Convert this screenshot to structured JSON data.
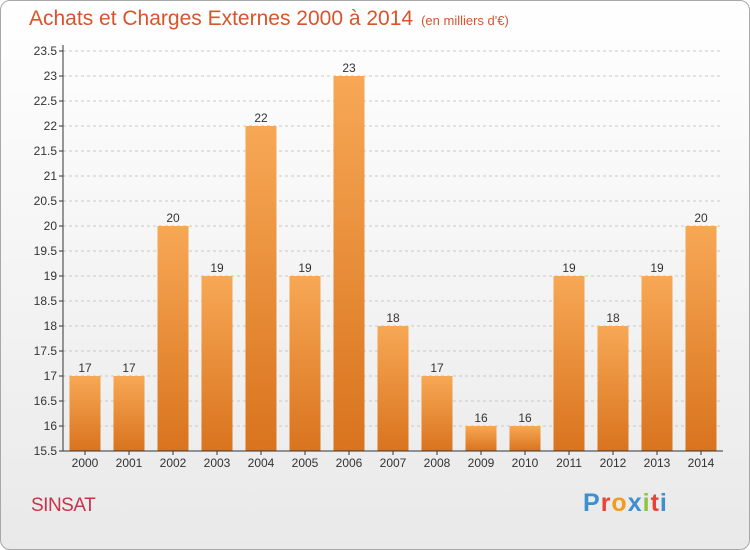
{
  "header": {
    "title": "Achats et Charges Externes 2000 à 2014",
    "unit": "(en milliers d'€)"
  },
  "footer": {
    "commune": "SINSAT",
    "logo_letters": [
      "P",
      "r",
      "o",
      "x",
      "i",
      "t",
      "i"
    ],
    "logo_colors": [
      "#3d8fd0",
      "#e7433a",
      "#f39a1f",
      "#3d8fd0",
      "#8cc63f",
      "#e7433a",
      "#3d8fd0"
    ]
  },
  "chart_data": {
    "type": "bar",
    "categories": [
      "2000",
      "2001",
      "2002",
      "2003",
      "2004",
      "2005",
      "2006",
      "2007",
      "2008",
      "2009",
      "2010",
      "2011",
      "2012",
      "2013",
      "2014"
    ],
    "values": [
      17,
      17,
      20,
      19,
      22,
      19,
      23,
      18,
      17,
      16,
      16,
      19,
      18,
      19,
      20
    ],
    "ylim": [
      15.5,
      23.5
    ],
    "yticks": [
      "15.5",
      "16",
      "16.5",
      "17",
      "17.5",
      "18",
      "18.5",
      "19",
      "19.5",
      "20",
      "20.5",
      "21",
      "21.5",
      "22",
      "22.5",
      "23",
      "23.5"
    ],
    "grid": true,
    "bar_color_top": "#f7a855",
    "bar_color_bottom": "#d9731e"
  }
}
